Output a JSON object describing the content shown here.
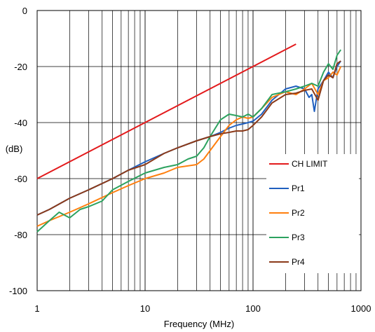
{
  "chart_data": {
    "type": "line",
    "title": "",
    "xlabel": "Frequency (MHz)",
    "ylabel": "(dB)",
    "x_scale": "log",
    "xlim": [
      1,
      1000
    ],
    "ylim": [
      -100,
      0
    ],
    "x_ticks": [
      1,
      10,
      100,
      1000
    ],
    "x_tick_labels": [
      "1",
      "10",
      "100",
      "1000"
    ],
    "y_ticks": [
      0,
      -20,
      -40,
      -60,
      -80,
      -100
    ],
    "y_tick_labels": [
      "0",
      "-20",
      "-40",
      "-60",
      "-80",
      "-100"
    ],
    "grid": true,
    "legend_position": "bottom-right",
    "series": [
      {
        "name": "CH LIMIT",
        "color": "#e31a1c",
        "x": [
          1,
          250
        ],
        "y": [
          -60,
          -12
        ]
      },
      {
        "name": "Pr1",
        "color": "#1f5fbf",
        "x": [
          1,
          1.3,
          2,
          3,
          5,
          7,
          10,
          15,
          20,
          30,
          40,
          50,
          60,
          70,
          80,
          90,
          100,
          120,
          150,
          200,
          250,
          300,
          330,
          350,
          370,
          400,
          450,
          500,
          550,
          600,
          650
        ],
        "y": [
          -73,
          -71,
          -67,
          -64,
          -60,
          -57,
          -54,
          -51,
          -49,
          -46.5,
          -45,
          -43.5,
          -42,
          -41,
          -40.5,
          -40,
          -39.5,
          -37,
          -32,
          -28,
          -27,
          -28,
          -31,
          -30,
          -36,
          -28,
          -25,
          -22,
          -24,
          -20,
          -18
        ]
      },
      {
        "name": "Pr2",
        "color": "#ff7f0e",
        "x": [
          1,
          1.3,
          2,
          3,
          5,
          7,
          10,
          15,
          20,
          30,
          35,
          40,
          50,
          60,
          70,
          80,
          90,
          100,
          120,
          150,
          200,
          250,
          300,
          350,
          400,
          450,
          500,
          550,
          600,
          650
        ],
        "y": [
          -77,
          -75,
          -72,
          -69,
          -65,
          -62.5,
          -60,
          -58,
          -56,
          -55,
          -53,
          -50,
          -45,
          -41,
          -39,
          -38,
          -38.5,
          -38,
          -35,
          -31,
          -29,
          -30,
          -28,
          -26,
          -30,
          -25,
          -24,
          -22,
          -23,
          -20
        ]
      },
      {
        "name": "Pr3",
        "color": "#2ca25f",
        "x": [
          1,
          1.3,
          1.6,
          2,
          2.5,
          3,
          4,
          5,
          7,
          10,
          15,
          20,
          25,
          30,
          35,
          40,
          50,
          60,
          70,
          80,
          90,
          100,
          120,
          150,
          200,
          250,
          300,
          350,
          400,
          450,
          500,
          550,
          600,
          650
        ],
        "y": [
          -79,
          -75,
          -72,
          -74,
          -71,
          -70,
          -68,
          -64,
          -61,
          -58,
          -56,
          -55,
          -53,
          -52,
          -49,
          -45,
          -39,
          -37,
          -37.5,
          -38,
          -37,
          -38,
          -35,
          -30,
          -29,
          -28,
          -27,
          -26,
          -27,
          -22,
          -19,
          -21,
          -16,
          -14
        ]
      },
      {
        "name": "Pr4",
        "color": "#8b3a1a",
        "x": [
          1,
          1.3,
          2,
          3,
          5,
          7,
          10,
          15,
          20,
          30,
          40,
          50,
          60,
          70,
          80,
          90,
          100,
          120,
          150,
          200,
          250,
          300,
          350,
          400,
          450,
          500,
          550,
          600,
          650
        ],
        "y": [
          -73,
          -71,
          -67,
          -64,
          -60,
          -57,
          -55,
          -51,
          -49,
          -46.5,
          -45,
          -44,
          -43.5,
          -43,
          -43,
          -42.5,
          -41,
          -38,
          -33,
          -30,
          -29.5,
          -28.5,
          -28,
          -32,
          -25,
          -23,
          -24,
          -19,
          -18
        ]
      }
    ]
  }
}
